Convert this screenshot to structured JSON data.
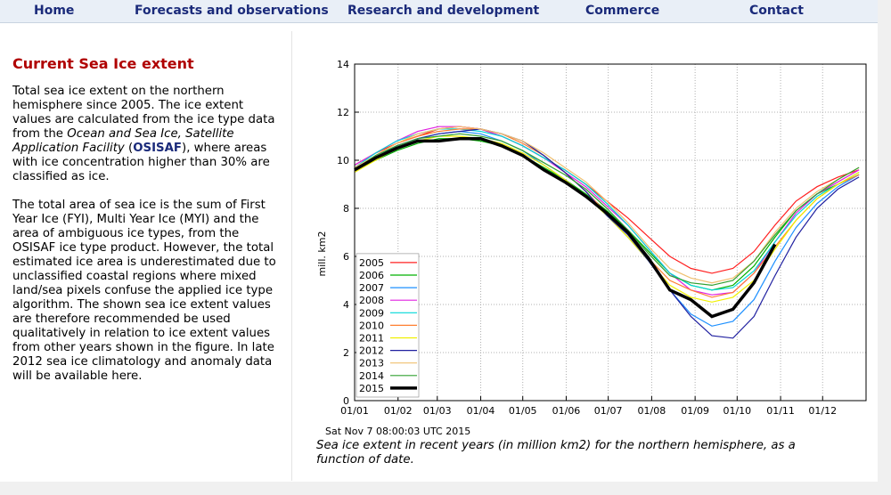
{
  "header": {
    "nav": [
      "Home",
      "Forecasts and observations",
      "Research and development",
      "Commerce",
      "Contact"
    ]
  },
  "sidebar": {
    "heading": "Current Sea Ice extent",
    "paragraphs": [
      [
        "Total sea ice extent on the northern hemisphere since 2005. The ice extent values are calculated from the ice type data from the ",
        "Ocean and Sea Ice, Satellite Application Facility",
        " (",
        "OSISAF",
        "), where areas with ice concentration higher than 30% are classified as ice."
      ],
      [
        "The total area of sea ice is the sum of First Year Ice (FYI), Multi Year Ice (MYI) and the area of ambiguous ice types, from the OSISAF ice type product. However, the total estimated ice area is underestimated due to unclassified coastal regions where mixed land/sea pixels confuse the applied ice type algorithm. The shown sea ice extent values are therefore recommended be used qualitatively in relation to ice extent values from other years shown in the figure. In late 2012 sea ice climatology and anomaly data will be available here."
      ]
    ]
  },
  "chart_data": {
    "type": "line",
    "ylabel": "mill. km2",
    "timestamp": "Sat Nov 7 08:00:03 UTC 2015",
    "caption": "Sea ice extent in recent years (in million km2) for the northern hemisphere, as a function of date.",
    "x": [
      0,
      15,
      30,
      45,
      60,
      75,
      90,
      105,
      120,
      135,
      150,
      165,
      180,
      195,
      210,
      225,
      240,
      255,
      270,
      285,
      300,
      315,
      330,
      345,
      360
    ],
    "xlim": [
      0,
      365
    ],
    "xticks": [
      {
        "value": 0,
        "label": "01/01"
      },
      {
        "value": 31,
        "label": "01/02"
      },
      {
        "value": 59,
        "label": "01/03"
      },
      {
        "value": 90,
        "label": "01/04"
      },
      {
        "value": 120,
        "label": "01/05"
      },
      {
        "value": 151,
        "label": "01/06"
      },
      {
        "value": 181,
        "label": "01/07"
      },
      {
        "value": 212,
        "label": "01/08"
      },
      {
        "value": 243,
        "label": "01/09"
      },
      {
        "value": 273,
        "label": "01/10"
      },
      {
        "value": 304,
        "label": "01/11"
      },
      {
        "value": 334,
        "label": "01/12"
      }
    ],
    "ylim": [
      0,
      14
    ],
    "yticks": [
      0,
      2,
      4,
      6,
      8,
      10,
      12,
      14
    ],
    "grid": true,
    "legend": "bottom-left",
    "series": [
      {
        "name": "2005",
        "color": "#ff2020",
        "values": [
          9.8,
          10.3,
          10.7,
          11.0,
          11.3,
          11.4,
          11.3,
          11.0,
          10.6,
          10.1,
          9.6,
          9.0,
          8.3,
          7.6,
          6.8,
          6.0,
          5.5,
          5.3,
          5.5,
          6.2,
          7.3,
          8.3,
          8.9,
          9.3,
          9.6
        ]
      },
      {
        "name": "2006",
        "color": "#00b000",
        "values": [
          9.6,
          10.0,
          10.4,
          10.7,
          10.9,
          10.9,
          10.8,
          10.6,
          10.2,
          9.7,
          9.2,
          8.6,
          7.9,
          7.1,
          6.2,
          5.3,
          4.8,
          4.6,
          4.8,
          5.6,
          6.8,
          7.9,
          8.6,
          9.0,
          9.4
        ]
      },
      {
        "name": "2007",
        "color": "#1e90ff",
        "values": [
          9.7,
          10.2,
          10.6,
          10.9,
          11.1,
          11.2,
          11.1,
          10.8,
          10.4,
          9.8,
          9.2,
          8.5,
          7.7,
          6.8,
          5.8,
          4.6,
          3.6,
          3.1,
          3.3,
          4.2,
          5.8,
          7.2,
          8.2,
          8.9,
          9.4
        ]
      },
      {
        "name": "2008",
        "color": "#e020e0",
        "values": [
          9.8,
          10.3,
          10.8,
          11.2,
          11.4,
          11.4,
          11.3,
          11.0,
          10.6,
          10.1,
          9.5,
          8.9,
          8.1,
          7.3,
          6.3,
          5.3,
          4.6,
          4.4,
          4.5,
          5.3,
          6.6,
          7.8,
          8.6,
          9.1,
          9.6
        ]
      },
      {
        "name": "2009",
        "color": "#00d8d8",
        "values": [
          9.7,
          10.3,
          10.8,
          11.1,
          11.3,
          11.3,
          11.2,
          11.0,
          10.6,
          10.1,
          9.6,
          9.0,
          8.2,
          7.3,
          6.3,
          5.3,
          4.8,
          4.6,
          4.7,
          5.4,
          6.6,
          7.7,
          8.5,
          9.0,
          9.5
        ]
      },
      {
        "name": "2010",
        "color": "#ff7f30",
        "values": [
          9.6,
          10.2,
          10.7,
          11.0,
          11.2,
          11.3,
          11.3,
          11.1,
          10.7,
          10.2,
          9.5,
          8.7,
          7.8,
          6.9,
          5.9,
          5.0,
          4.6,
          4.3,
          4.5,
          5.3,
          6.4,
          7.5,
          8.4,
          9.0,
          9.4
        ]
      },
      {
        "name": "2011",
        "color": "#f0f000",
        "values": [
          9.5,
          10.0,
          10.5,
          10.8,
          11.0,
          11.0,
          10.9,
          10.7,
          10.3,
          9.8,
          9.2,
          8.5,
          7.7,
          6.8,
          5.8,
          4.8,
          4.3,
          4.1,
          4.3,
          5.0,
          6.3,
          7.5,
          8.4,
          9.0,
          9.5
        ]
      },
      {
        "name": "2012",
        "color": "#2020a0",
        "values": [
          9.6,
          10.1,
          10.6,
          10.9,
          11.1,
          11.2,
          11.3,
          11.1,
          10.8,
          10.2,
          9.5,
          8.7,
          7.7,
          6.9,
          5.8,
          4.6,
          3.5,
          2.7,
          2.6,
          3.5,
          5.2,
          6.8,
          8.0,
          8.8,
          9.3
        ]
      },
      {
        "name": "2013",
        "color": "#f0c070",
        "values": [
          9.7,
          10.2,
          10.7,
          11.1,
          11.3,
          11.4,
          11.3,
          11.1,
          10.8,
          10.3,
          9.7,
          9.1,
          8.3,
          7.4,
          6.4,
          5.5,
          5.1,
          4.9,
          5.1,
          5.8,
          7.0,
          8.0,
          8.7,
          9.2,
          9.7
        ]
      },
      {
        "name": "2014",
        "color": "#30a030",
        "values": [
          9.6,
          10.2,
          10.6,
          10.9,
          11.0,
          11.1,
          11.0,
          10.8,
          10.4,
          9.9,
          9.4,
          8.8,
          8.0,
          7.1,
          6.1,
          5.2,
          4.9,
          4.8,
          5.0,
          5.8,
          6.9,
          7.9,
          8.6,
          9.2,
          9.7
        ]
      },
      {
        "name": "2015",
        "color": "#000000",
        "values": [
          9.6,
          10.1,
          10.5,
          10.8,
          10.8,
          10.9,
          10.9,
          10.6,
          10.2,
          9.6,
          9.1,
          8.5,
          7.8,
          7.0,
          5.9,
          4.6,
          4.2,
          3.5,
          3.8,
          4.9,
          6.5,
          null,
          null,
          null,
          null
        ]
      }
    ]
  }
}
